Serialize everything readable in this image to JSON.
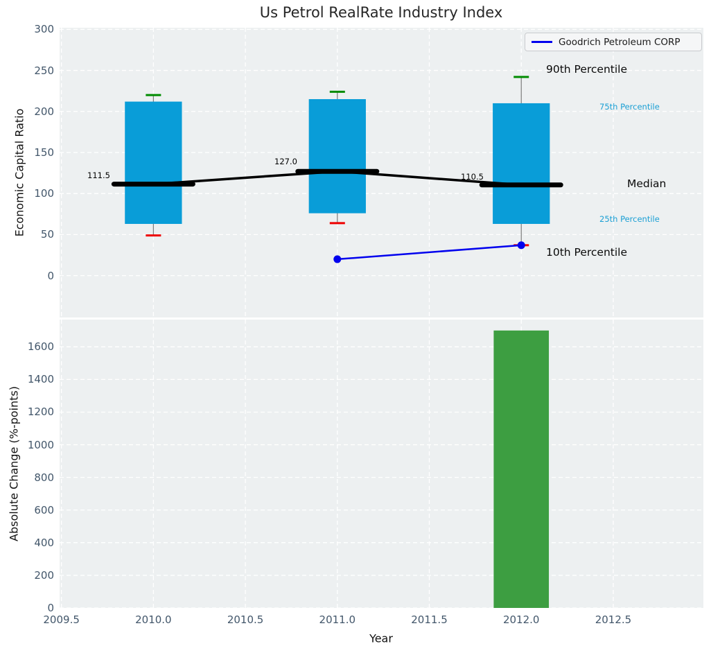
{
  "colors": {
    "plot_bg": "#edf0f1",
    "grid": "#ffffff",
    "box_fill": "#099dd8",
    "whisker": "#7a7a7a",
    "cap_top": "#008b00",
    "cap_bottom": "#ee0000",
    "median_line": "#000000",
    "company_line": "#0101ee",
    "bar_fill": "#3d9e41",
    "tick_label": "#42566a",
    "cyan_label": "#1a9fd4"
  },
  "chart_data": [
    {
      "type": "boxplot",
      "title": "Us Petrol RealRate Industry Index",
      "ylabel": "Economic Capital Ratio",
      "xlabel": "",
      "xlim": [
        2009.49,
        2012.99
      ],
      "ylim": [
        -51,
        302
      ],
      "grid": true,
      "yticks": [
        0,
        50,
        100,
        150,
        200,
        250,
        300
      ],
      "xticks": [
        2009.5,
        2010.0,
        2010.5,
        2011.0,
        2011.5,
        2012.0,
        2012.5
      ],
      "legend": {
        "label": "Goodrich Petroleum CORP",
        "position": "upper right"
      },
      "box_width_years": 0.31,
      "boxes": [
        {
          "x": 2010,
          "p10": 49,
          "p25": 63,
          "median": 111.5,
          "p75": 212,
          "p90": 220,
          "median_label": "111.5"
        },
        {
          "x": 2011,
          "p10": 64,
          "p25": 76,
          "median": 127.0,
          "p75": 215,
          "p90": 224,
          "median_label": "127.0"
        },
        {
          "x": 2012,
          "p10": 37,
          "p25": 63,
          "median": 110.5,
          "p75": 210,
          "p90": 242,
          "median_label": "110.5"
        }
      ],
      "median_trend": {
        "x": [
          2010,
          2011,
          2012
        ],
        "y": [
          111.5,
          127.0,
          110.5
        ]
      },
      "series": [
        {
          "name": "Goodrich Petroleum CORP",
          "x": [
            2011,
            2012
          ],
          "y": [
            20,
            37
          ]
        }
      ],
      "annotation_labels": {
        "p90": "90th Percentile",
        "p75": "75th Percentile",
        "median": "Median",
        "p25": "25th Percentile",
        "p10": "10th Percentile"
      }
    },
    {
      "type": "bar",
      "title": "",
      "ylabel": "Absolute Change (%-points)",
      "xlabel": "Year",
      "xlim": [
        2009.49,
        2012.99
      ],
      "ylim": [
        0,
        1767
      ],
      "grid": true,
      "yticks": [
        0,
        200,
        400,
        600,
        800,
        1000,
        1200,
        1400,
        1600
      ],
      "xticks": [
        2009.5,
        2010.0,
        2010.5,
        2011.0,
        2011.5,
        2012.0,
        2012.5
      ],
      "xtick_labels": [
        "2009.5",
        "2010.0",
        "2010.5",
        "2011.0",
        "2011.5",
        "2012.0",
        "2012.5"
      ],
      "x": [
        2012
      ],
      "values": [
        1700
      ],
      "bar_width_years": 0.3
    }
  ]
}
